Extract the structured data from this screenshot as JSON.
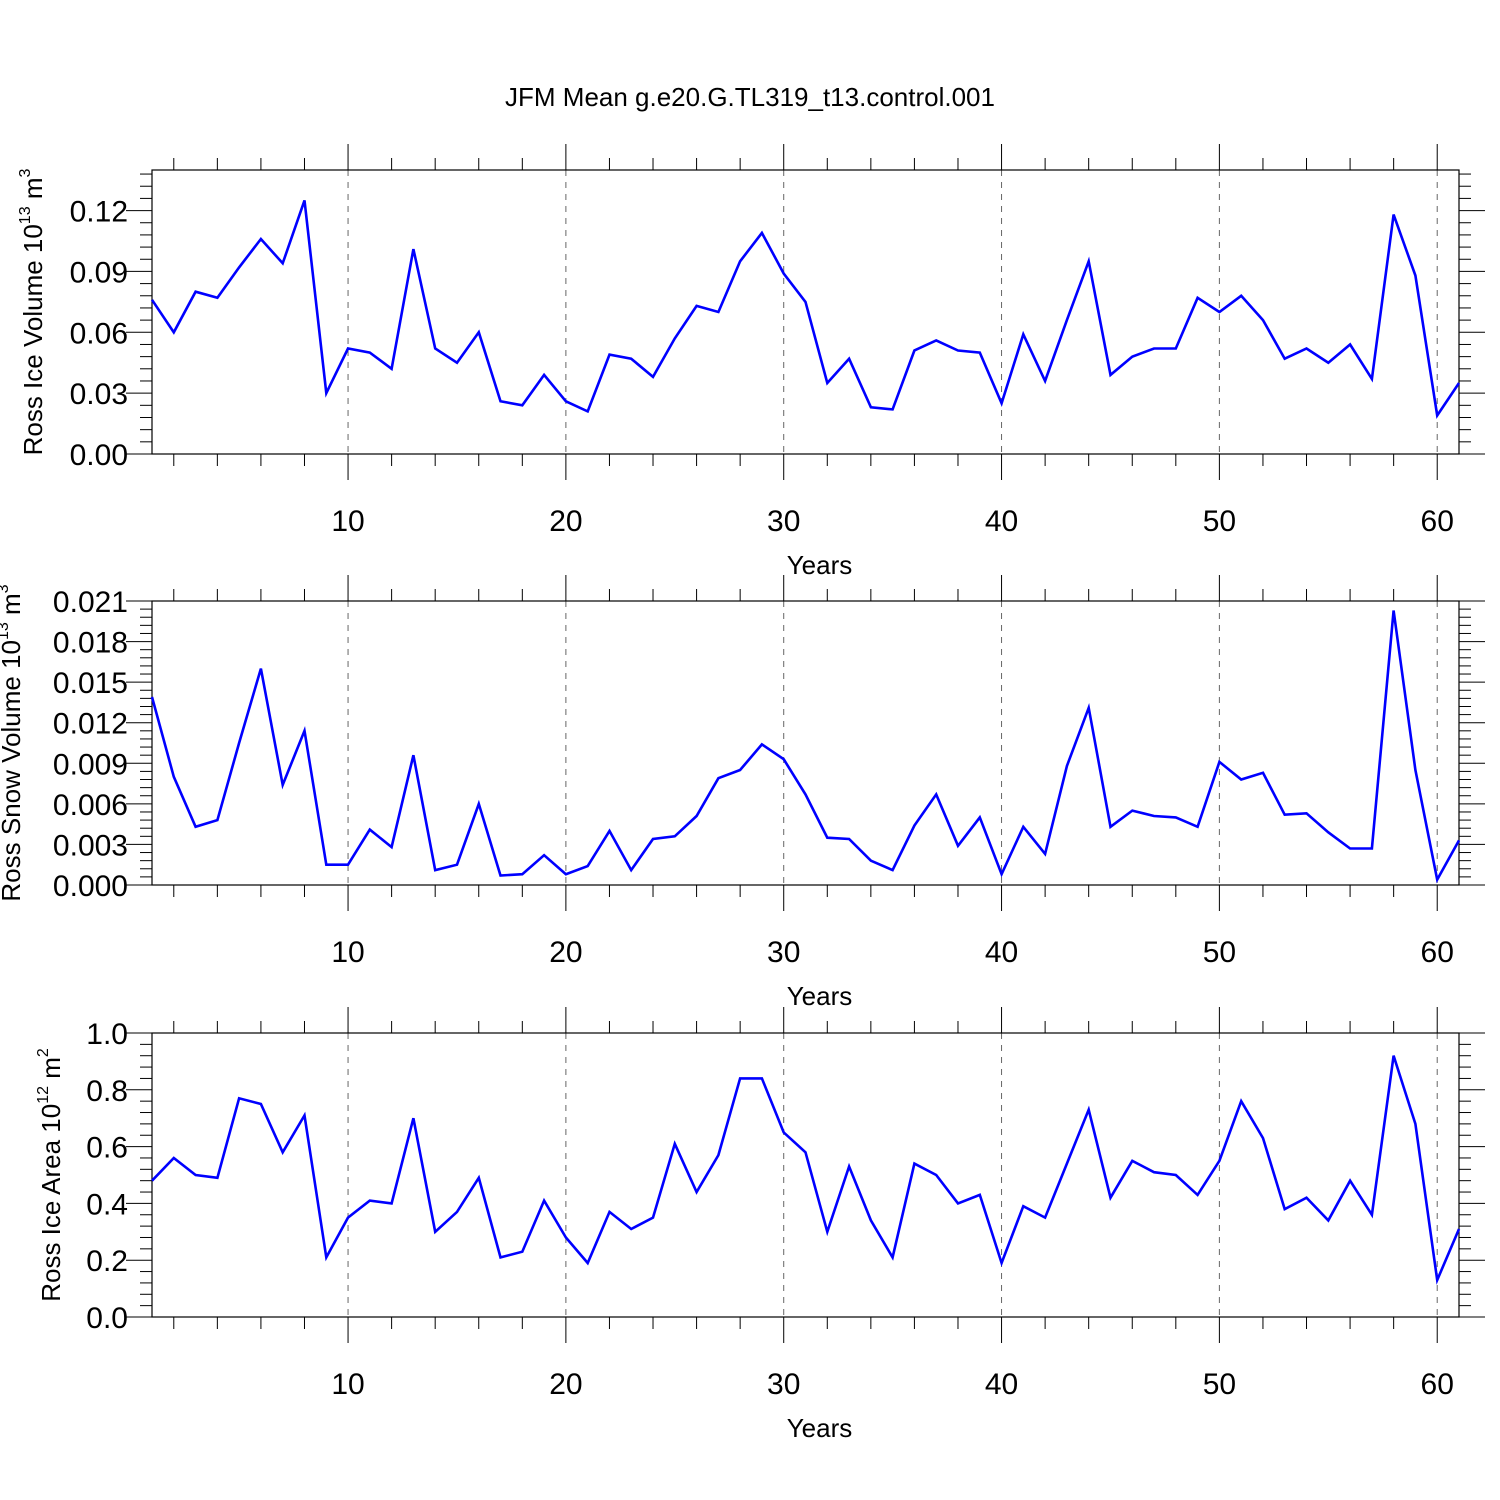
{
  "title": "JFM Mean g.e20.G.TL319_t13.control.001",
  "colors": {
    "series": "#0000ff",
    "axis": "#000000",
    "grid": "#666666"
  },
  "chart_data": [
    {
      "type": "line",
      "ylabel": "Ross Ice Volume 10",
      "ylabel_exp": "13",
      "ylabel_unit": " m",
      "ylabel_unit_exp": "3",
      "xlabel": "Years",
      "xlim": [
        1,
        61
      ],
      "ylim": [
        0,
        0.14
      ],
      "xticks": [
        "10",
        "20",
        "30",
        "40",
        "50",
        "60"
      ],
      "yticks": [
        "0.00",
        "0.03",
        "0.06",
        "0.09",
        "0.12"
      ],
      "grid": "vertical dashed at major x ticks",
      "series": [
        {
          "values": [
            0.076,
            0.06,
            0.08,
            0.077,
            0.092,
            0.106,
            0.094,
            0.125,
            0.03,
            0.052,
            0.05,
            0.042,
            0.101,
            0.052,
            0.045,
            0.06,
            0.026,
            0.024,
            0.039,
            0.026,
            0.021,
            0.049,
            0.047,
            0.038,
            0.057,
            0.073,
            0.07,
            0.095,
            0.109,
            0.089,
            0.075,
            0.035,
            0.047,
            0.023,
            0.022,
            0.051,
            0.056,
            0.051,
            0.05,
            0.025,
            0.059,
            0.036,
            0.066,
            0.095,
            0.039,
            0.048,
            0.052,
            0.052,
            0.077,
            0.07,
            0.078,
            0.066,
            0.047,
            0.052,
            0.045,
            0.054,
            0.037,
            0.118,
            0.088,
            0.019,
            0.035
          ]
        }
      ]
    },
    {
      "type": "line",
      "ylabel": "Ross Snow Volume 10",
      "ylabel_exp": "13",
      "ylabel_unit": " m",
      "ylabel_unit_exp": "3",
      "xlabel": "Years",
      "xlim": [
        1,
        61
      ],
      "ylim": [
        0,
        0.021
      ],
      "xticks": [
        "10",
        "20",
        "30",
        "40",
        "50",
        "60"
      ],
      "yticks": [
        "0.000",
        "0.003",
        "0.006",
        "0.009",
        "0.012",
        "0.015",
        "0.018",
        "0.021"
      ],
      "grid": "vertical dashed at major x ticks",
      "series": [
        {
          "values": [
            0.0139,
            0.008,
            0.0043,
            0.0048,
            0.0105,
            0.016,
            0.0074,
            0.0114,
            0.0015,
            0.0015,
            0.0041,
            0.0028,
            0.0096,
            0.0011,
            0.0015,
            0.006,
            0.0007,
            0.0008,
            0.0022,
            0.0008,
            0.0014,
            0.004,
            0.0011,
            0.0034,
            0.0036,
            0.0051,
            0.0079,
            0.0085,
            0.0104,
            0.0093,
            0.0067,
            0.0035,
            0.0034,
            0.0018,
            0.0011,
            0.0044,
            0.0067,
            0.0029,
            0.005,
            0.0008,
            0.0043,
            0.0023,
            0.0088,
            0.0131,
            0.0043,
            0.0055,
            0.0051,
            0.005,
            0.0043,
            0.0091,
            0.0078,
            0.0083,
            0.0052,
            0.0053,
            0.0039,
            0.0027,
            0.0027,
            0.0203,
            0.0085,
            0.0004,
            0.0033
          ]
        }
      ]
    },
    {
      "type": "line",
      "ylabel": "Ross Ice Area 10",
      "ylabel_exp": "12",
      "ylabel_unit": " m",
      "ylabel_unit_exp": "2",
      "xlabel": "Years",
      "xlim": [
        1,
        61
      ],
      "ylim": [
        0,
        1.0
      ],
      "xticks": [
        "10",
        "20",
        "30",
        "40",
        "50",
        "60"
      ],
      "yticks": [
        "0.0",
        "0.2",
        "0.4",
        "0.6",
        "0.8",
        "1.0"
      ],
      "grid": "vertical dashed at major x ticks",
      "series": [
        {
          "values": [
            0.48,
            0.56,
            0.5,
            0.49,
            0.77,
            0.75,
            0.58,
            0.71,
            0.21,
            0.35,
            0.41,
            0.4,
            0.7,
            0.3,
            0.37,
            0.49,
            0.21,
            0.23,
            0.41,
            0.28,
            0.19,
            0.37,
            0.31,
            0.35,
            0.61,
            0.44,
            0.57,
            0.84,
            0.84,
            0.65,
            0.58,
            0.3,
            0.53,
            0.34,
            0.21,
            0.54,
            0.5,
            0.4,
            0.43,
            0.19,
            0.39,
            0.35,
            0.54,
            0.73,
            0.42,
            0.55,
            0.51,
            0.5,
            0.43,
            0.55,
            0.76,
            0.63,
            0.38,
            0.42,
            0.34,
            0.48,
            0.36,
            0.92,
            0.68,
            0.13,
            0.31
          ]
        }
      ]
    }
  ]
}
